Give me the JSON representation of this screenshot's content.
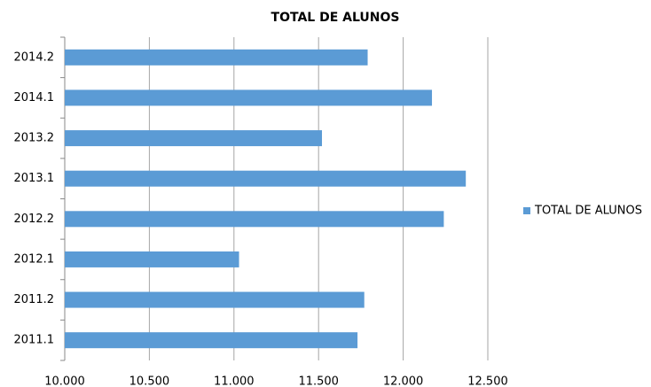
{
  "chart_data": {
    "type": "barh",
    "title": "TOTAL DE ALUNOS",
    "categories": [
      "2011.1",
      "2011.2",
      "2012.1",
      "2012.2",
      "2013.1",
      "2013.2",
      "2014.1",
      "2014.2"
    ],
    "series": [
      {
        "name": "TOTAL DE ALUNOS",
        "color": "#5b9bd5",
        "values": [
          11730,
          11770,
          11030,
          12240,
          12370,
          11520,
          12170,
          11790
        ]
      }
    ],
    "xlim": [
      10000,
      12500
    ],
    "xticks": [
      {
        "value": 10000,
        "label": "10.000"
      },
      {
        "value": 10500,
        "label": "10.500"
      },
      {
        "value": 11000,
        "label": "11.000"
      },
      {
        "value": 11500,
        "label": "11.500"
      },
      {
        "value": 12000,
        "label": "12.000"
      },
      {
        "value": 12500,
        "label": "12.500"
      }
    ],
    "grid": true,
    "legend": "right"
  }
}
